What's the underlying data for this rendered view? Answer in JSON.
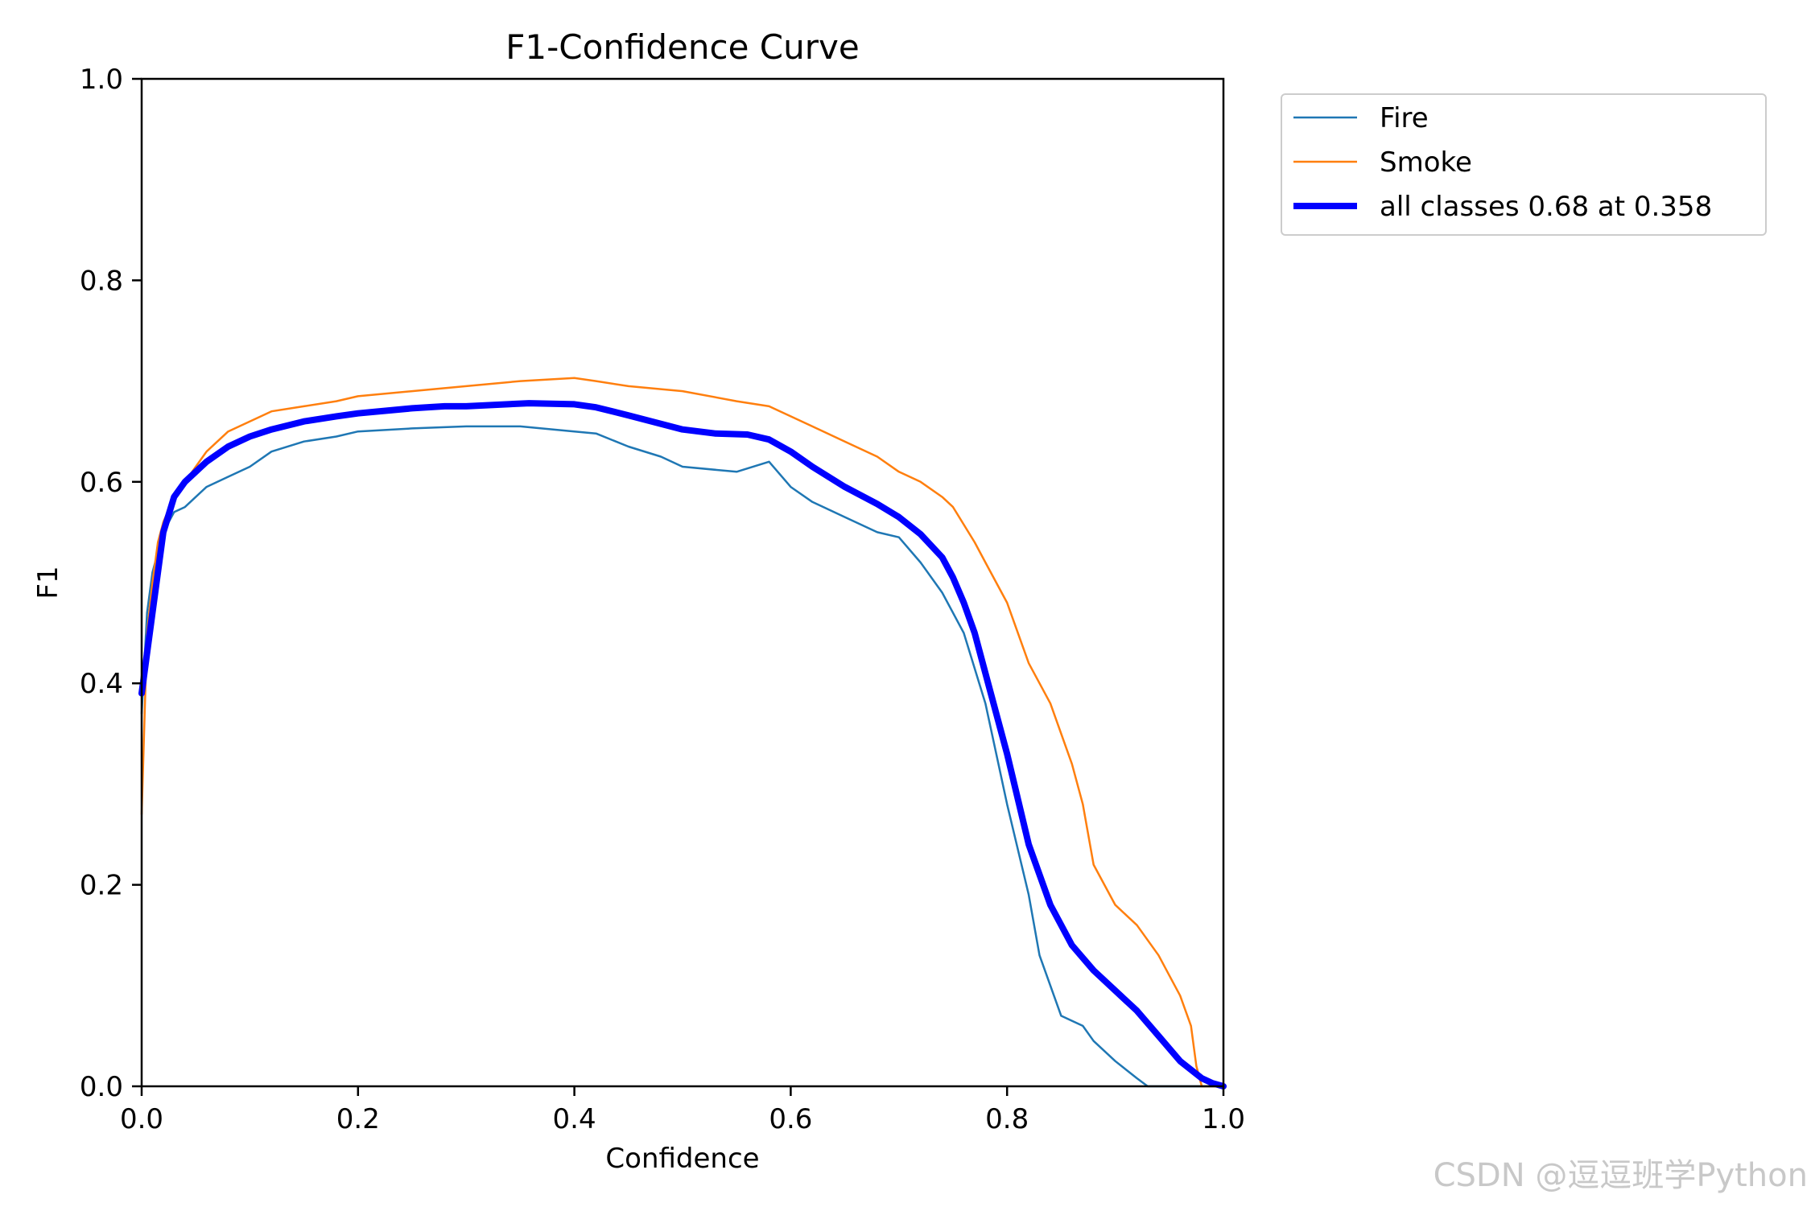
{
  "chart_data": {
    "type": "line",
    "title": "F1-Confidence Curve",
    "xlabel": "Confidence",
    "ylabel": "F1",
    "xlim": [
      0,
      1
    ],
    "ylim": [
      0,
      1
    ],
    "xticks": [
      "0.0",
      "0.2",
      "0.4",
      "0.6",
      "0.8",
      "1.0"
    ],
    "yticks": [
      "0.0",
      "0.2",
      "0.4",
      "0.6",
      "0.8",
      "1.0"
    ],
    "grid": false,
    "legend_position": "outside-top-right",
    "series": [
      {
        "name": "Fire",
        "color": "#1f77b4",
        "line_width": "thin",
        "x": [
          0.0,
          0.005,
          0.01,
          0.02,
          0.03,
          0.04,
          0.05,
          0.06,
          0.08,
          0.1,
          0.12,
          0.15,
          0.18,
          0.2,
          0.25,
          0.3,
          0.35,
          0.4,
          0.42,
          0.45,
          0.48,
          0.5,
          0.55,
          0.58,
          0.6,
          0.62,
          0.65,
          0.68,
          0.7,
          0.72,
          0.74,
          0.76,
          0.78,
          0.8,
          0.82,
          0.83,
          0.85,
          0.87,
          0.88,
          0.9,
          0.92,
          0.93,
          0.95,
          0.98,
          1.0
        ],
        "values": [
          0.37,
          0.47,
          0.51,
          0.55,
          0.57,
          0.575,
          0.585,
          0.595,
          0.605,
          0.615,
          0.63,
          0.64,
          0.645,
          0.65,
          0.653,
          0.655,
          0.655,
          0.65,
          0.648,
          0.635,
          0.625,
          0.615,
          0.61,
          0.62,
          0.595,
          0.58,
          0.565,
          0.55,
          0.545,
          0.52,
          0.49,
          0.45,
          0.38,
          0.28,
          0.19,
          0.13,
          0.07,
          0.06,
          0.045,
          0.025,
          0.008,
          0.0,
          0.0,
          0.0,
          0.0
        ]
      },
      {
        "name": "Smoke",
        "color": "#ff7f0e",
        "line_width": "thin",
        "x": [
          0.0,
          0.005,
          0.01,
          0.015,
          0.02,
          0.03,
          0.04,
          0.05,
          0.06,
          0.08,
          0.1,
          0.12,
          0.15,
          0.18,
          0.2,
          0.25,
          0.3,
          0.35,
          0.4,
          0.42,
          0.45,
          0.5,
          0.55,
          0.58,
          0.6,
          0.62,
          0.65,
          0.68,
          0.7,
          0.72,
          0.74,
          0.75,
          0.77,
          0.78,
          0.8,
          0.82,
          0.84,
          0.85,
          0.86,
          0.87,
          0.88,
          0.9,
          0.92,
          0.94,
          0.95,
          0.96,
          0.97,
          0.975,
          0.98,
          1.0
        ],
        "values": [
          0.27,
          0.45,
          0.5,
          0.54,
          0.56,
          0.585,
          0.6,
          0.615,
          0.63,
          0.65,
          0.66,
          0.67,
          0.675,
          0.68,
          0.685,
          0.69,
          0.695,
          0.7,
          0.703,
          0.7,
          0.695,
          0.69,
          0.68,
          0.675,
          0.665,
          0.655,
          0.64,
          0.625,
          0.61,
          0.6,
          0.585,
          0.575,
          0.54,
          0.52,
          0.48,
          0.42,
          0.38,
          0.35,
          0.32,
          0.28,
          0.22,
          0.18,
          0.16,
          0.13,
          0.11,
          0.09,
          0.06,
          0.02,
          0.0,
          0.0
        ]
      },
      {
        "name": "all classes 0.68 at 0.358",
        "color": "#0000ff",
        "line_width": "thick",
        "x": [
          0.0,
          0.01,
          0.02,
          0.03,
          0.04,
          0.05,
          0.06,
          0.08,
          0.1,
          0.12,
          0.15,
          0.18,
          0.2,
          0.25,
          0.28,
          0.3,
          0.358,
          0.4,
          0.42,
          0.45,
          0.5,
          0.53,
          0.56,
          0.58,
          0.6,
          0.62,
          0.65,
          0.68,
          0.7,
          0.72,
          0.74,
          0.75,
          0.76,
          0.77,
          0.78,
          0.8,
          0.82,
          0.84,
          0.86,
          0.88,
          0.9,
          0.92,
          0.94,
          0.96,
          0.98,
          0.99,
          1.0
        ],
        "values": [
          0.39,
          0.47,
          0.55,
          0.585,
          0.6,
          0.61,
          0.62,
          0.635,
          0.645,
          0.652,
          0.66,
          0.665,
          0.668,
          0.673,
          0.675,
          0.675,
          0.678,
          0.677,
          0.674,
          0.666,
          0.652,
          0.648,
          0.647,
          0.642,
          0.63,
          0.615,
          0.595,
          0.578,
          0.565,
          0.548,
          0.525,
          0.505,
          0.48,
          0.45,
          0.41,
          0.33,
          0.24,
          0.18,
          0.14,
          0.115,
          0.095,
          0.075,
          0.05,
          0.025,
          0.008,
          0.003,
          0.0
        ]
      }
    ]
  },
  "watermark": "CSDN @逗逗班学Python"
}
